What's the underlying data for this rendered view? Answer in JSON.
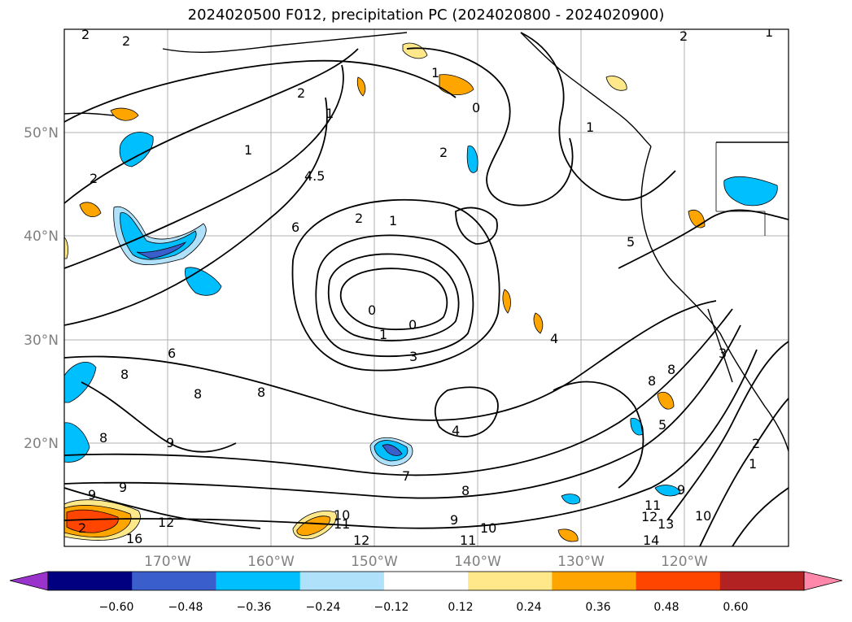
{
  "title": "2024020500 F012, precipitation PC (2024020800 - 2024020900)",
  "map": {
    "lon_range": [
      -180,
      -110
    ],
    "lat_range": [
      10,
      60
    ],
    "lat_ticks": [
      "20°N",
      "30°N",
      "40°N",
      "50°N"
    ],
    "lon_ticks": [
      "170°W",
      "160°W",
      "150°W",
      "140°W",
      "130°W",
      "120°W"
    ],
    "grid": true
  },
  "colorbar": {
    "ticks": [
      "−0.60",
      "−0.48",
      "−0.36",
      "−0.24",
      "−0.12",
      "0.12",
      "0.24",
      "0.36",
      "0.48",
      "0.60"
    ],
    "colors": [
      "#9933cc",
      "#000080",
      "#3a5fcd",
      "#00bfff",
      "#afe1fa",
      "#ffffff",
      "#ffe88a",
      "#ffa500",
      "#ff4500",
      "#b22222",
      "#ff88aa"
    ]
  },
  "contour_labels": [
    "2",
    "2",
    "1",
    "2",
    "1",
    "0",
    "1",
    "2",
    "1",
    "2",
    "2",
    "4.5",
    "1",
    "2",
    "1",
    "6",
    "5",
    "0",
    "0",
    "1",
    "3",
    "4",
    "3",
    "6",
    "8",
    "8",
    "8",
    "8",
    "9",
    "9",
    "9",
    "8",
    "8",
    "5",
    "4",
    "7",
    "8",
    "9",
    "10",
    "11",
    "12",
    "12",
    "10",
    "11",
    "12",
    "14",
    "13",
    "11",
    "10",
    "9",
    "2",
    "1",
    "16",
    "2"
  ]
}
